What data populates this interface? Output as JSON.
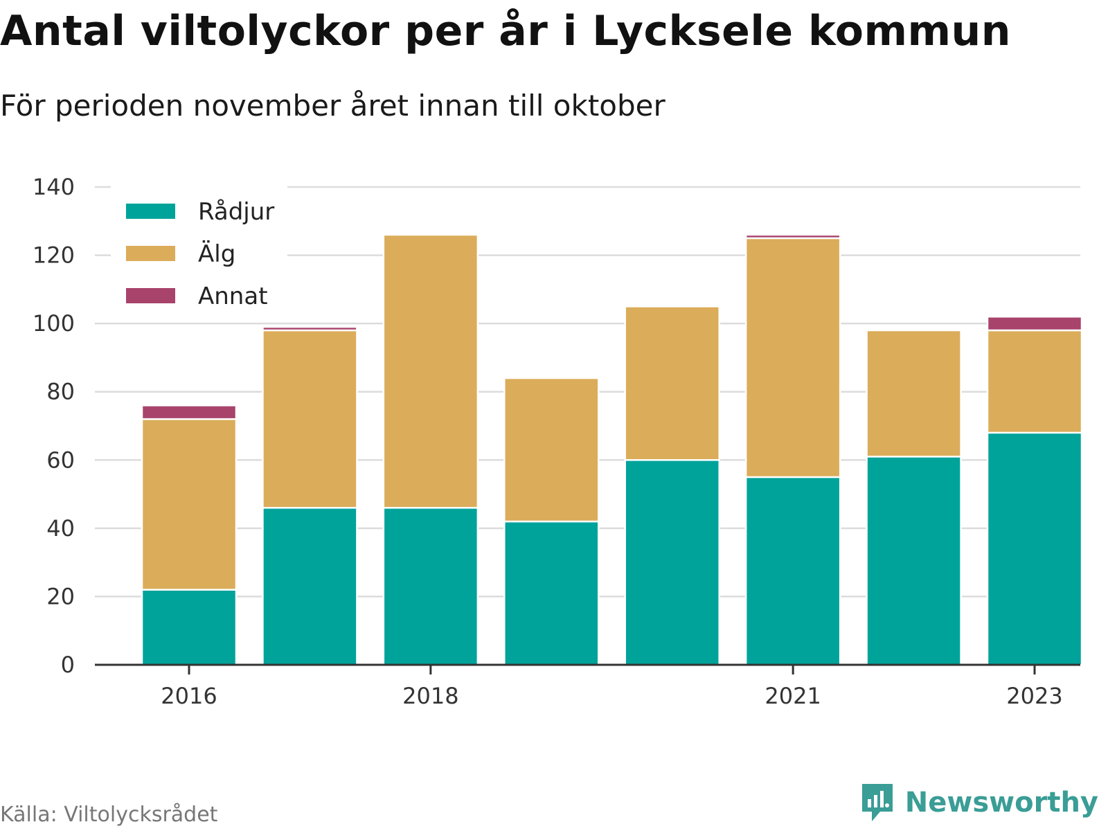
{
  "title": "Antal viltolyckor per år i Lycksele kommun",
  "subtitle": "För perioden november året innan till oktober",
  "source": "Källa: Viltolycksrådet",
  "brand": {
    "name": "Newsworthy",
    "icon": "newsworthy-logo-icon",
    "color": "#3a9d96"
  },
  "chart_data": {
    "type": "bar",
    "stacked": true,
    "categories": [
      2016,
      2017,
      2018,
      2019,
      2020,
      2021,
      2022,
      2023
    ],
    "x_tick_labels": [
      "2016",
      "2018",
      "2021",
      "2023"
    ],
    "series": [
      {
        "name": "Rådjur",
        "color": "#00a39a",
        "values": [
          22,
          46,
          46,
          42,
          60,
          55,
          61,
          68
        ]
      },
      {
        "name": "Älg",
        "color": "#dbac5a",
        "values": [
          50,
          52,
          80,
          42,
          45,
          70,
          37,
          30
        ]
      },
      {
        "name": "Annat",
        "color": "#a8436b",
        "values": [
          4,
          1,
          0,
          0,
          0,
          1,
          0,
          4
        ]
      }
    ],
    "ylim": [
      0,
      140
    ],
    "yticks": [
      0,
      20,
      40,
      60,
      80,
      100,
      120,
      140
    ],
    "grid": true,
    "legend": "top-left",
    "xlabel": "",
    "ylabel": ""
  }
}
